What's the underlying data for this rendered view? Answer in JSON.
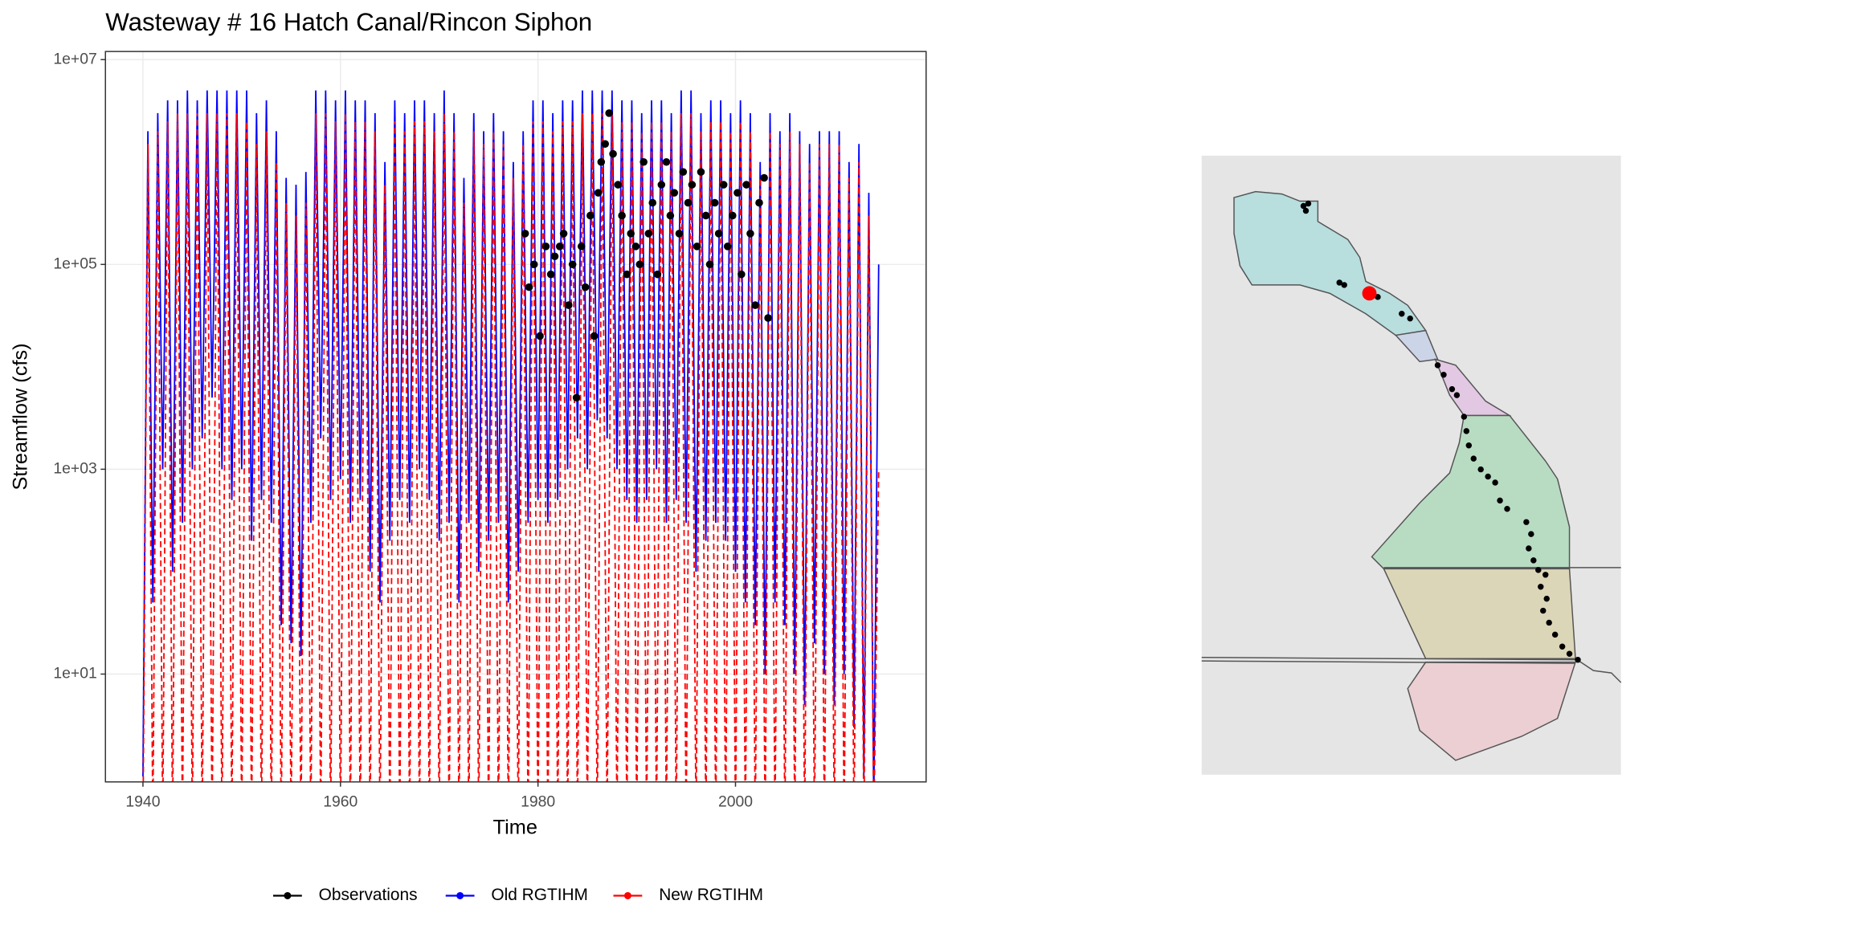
{
  "chart_data": {
    "type": "line",
    "title": "Wasteway # 16  Hatch Canal/Rincon Siphon",
    "x_label": "Time",
    "y_label": "Streamflow (cfs)",
    "log_y": true,
    "grid": true,
    "legend": "bottom",
    "xlim": [
      1936.2,
      2019.3
    ],
    "xticks": [
      1940,
      1960,
      1980,
      2000
    ],
    "ylim": [
      0.885,
      12000000.0
    ],
    "yticks": [
      {
        "value": 10,
        "label": "1e+01"
      },
      {
        "value": 1000,
        "label": "1e+03"
      },
      {
        "value": 100000,
        "label": "1e+05"
      },
      {
        "value": 10000000,
        "label": "1e+07"
      }
    ],
    "x": [
      1940,
      1940.5,
      1941,
      1941.5,
      1942,
      1942.5,
      1943,
      1943.5,
      1944,
      1944.5,
      1945,
      1945.5,
      1946,
      1946.5,
      1947,
      1947.5,
      1948,
      1948.5,
      1949,
      1949.5,
      1950,
      1950.5,
      1951,
      1951.5,
      1952,
      1952.5,
      1953,
      1953.5,
      1954,
      1954.5,
      1955,
      1955.5,
      1956,
      1956.5,
      1957,
      1957.5,
      1958,
      1958.5,
      1959,
      1959.5,
      1960,
      1960.5,
      1961,
      1961.5,
      1962,
      1962.5,
      1963,
      1963.5,
      1964,
      1964.5,
      1965,
      1965.5,
      1966,
      1966.5,
      1967,
      1967.5,
      1968,
      1968.5,
      1969,
      1969.5,
      1970,
      1970.5,
      1971,
      1971.5,
      1972,
      1972.5,
      1973,
      1973.5,
      1974,
      1974.5,
      1975,
      1975.5,
      1976,
      1976.5,
      1977,
      1977.5,
      1978,
      1978.5,
      1979,
      1979.5,
      1980,
      1980.5,
      1981,
      1981.5,
      1982,
      1982.5,
      1983,
      1983.5,
      1984,
      1984.5,
      1985,
      1985.5,
      1986,
      1986.5,
      1987,
      1987.5,
      1988,
      1988.5,
      1989,
      1989.5,
      1990,
      1990.5,
      1991,
      1991.5,
      1992,
      1992.5,
      1993,
      1993.5,
      1994,
      1994.5,
      1995,
      1995.5,
      1996,
      1996.5,
      1997,
      1997.5,
      1998,
      1998.5,
      1999,
      1999.5,
      2000,
      2000.5,
      2001,
      2001.5,
      2002,
      2002.5,
      2003,
      2003.5,
      2004,
      2004.5,
      2005,
      2005.5,
      2006,
      2006.5,
      2007,
      2007.5,
      2008,
      2008.5,
      2009,
      2009.5,
      2010,
      2010.5,
      2011,
      2011.5,
      2012,
      2012.5,
      2013,
      2013.5,
      2014,
      2014.5
    ],
    "series": [
      {
        "name": "Observations",
        "color": "#000000",
        "mode": "points",
        "x": [
          1978.7,
          1979.1,
          1979.6,
          1980.2,
          1980.8,
          1981.3,
          1981.7,
          1982.2,
          1982.6,
          1983.1,
          1983.5,
          1983.9,
          1984.4,
          1984.8,
          1985.3,
          1985.7,
          1986.1,
          1986.4,
          1986.8,
          1987.2,
          1987.6,
          1988.1,
          1988.5,
          1989.0,
          1989.4,
          1989.9,
          1990.3,
          1990.7,
          1991.2,
          1991.6,
          1992.1,
          1992.5,
          1993.0,
          1993.4,
          1993.8,
          1994.3,
          1994.7,
          1995.2,
          1995.6,
          1996.1,
          1996.5,
          1997.0,
          1997.4,
          1997.9,
          1998.3,
          1998.8,
          1999.2,
          1999.7,
          2000.2,
          2000.6,
          2001.1,
          2001.5,
          2002.0,
          2002.4,
          2002.9,
          2003.3
        ],
        "values": [
          200000.0,
          60000.0,
          100000.0,
          20000.0,
          150000.0,
          80000.0,
          120000.0,
          150000.0,
          200000.0,
          40000.0,
          100000.0,
          5000,
          150000.0,
          60000.0,
          300000.0,
          20000.0,
          500000.0,
          1000000.0,
          1500000.0,
          3000000.0,
          1200000.0,
          600000.0,
          300000.0,
          80000.0,
          200000.0,
          150000.0,
          100000.0,
          1000000.0,
          200000.0,
          400000.0,
          80000.0,
          600000.0,
          1000000.0,
          300000.0,
          500000.0,
          200000.0,
          800000.0,
          400000.0,
          600000.0,
          150000.0,
          800000.0,
          300000.0,
          100000.0,
          400000.0,
          200000.0,
          600000.0,
          150000.0,
          300000.0,
          500000.0,
          80000.0,
          600000.0,
          200000.0,
          40000.0,
          400000.0,
          700000.0,
          30000.0
        ]
      },
      {
        "name": "Old RGTIHM",
        "color": "#0000ff",
        "mode": "lines",
        "dash": "solid",
        "values": [
          1,
          2000000.0,
          50,
          3000000.0,
          1000,
          4000000.0,
          100,
          4000000.0,
          300,
          5000000.0,
          1000,
          4000000.0,
          2000,
          5000000.0,
          5000,
          5000000.0,
          1000,
          5000000.0,
          500,
          5000000.0,
          1000,
          5000000.0,
          200,
          3000000.0,
          500,
          4000000.0,
          300,
          2000000.0,
          30,
          700000.0,
          20,
          600000.0,
          15,
          800000.0,
          300,
          5000000.0,
          2000,
          5000000.0,
          500,
          4000000.0,
          800,
          5000000.0,
          300,
          4000000.0,
          500,
          4000000.0,
          100,
          3000000.0,
          50,
          1000000.0,
          200,
          4000000.0,
          500,
          3000000.0,
          300,
          4000000.0,
          1000,
          4000000.0,
          500,
          3000000.0,
          200,
          5000000.0,
          300,
          3000000.0,
          50,
          700000.0,
          300,
          3000000.0,
          100,
          2000000.0,
          200,
          3000000.0,
          300,
          2000000.0,
          50,
          1000000.0,
          100,
          2000000.0,
          300,
          4000000.0,
          500,
          4000000.0,
          300,
          3000000.0,
          500,
          4000000.0,
          1000,
          4000000.0,
          2000,
          5000000.0,
          1000,
          5000000.0,
          3000,
          5000000.0,
          2000,
          5000000.0,
          1000,
          4000000.0,
          500,
          4000000.0,
          300,
          3000000.0,
          500,
          4000000.0,
          1000,
          4000000.0,
          300,
          3000000.0,
          500,
          5000000.0,
          300,
          5000000.0,
          100,
          3000000.0,
          200,
          4000000.0,
          300,
          4000000.0,
          200,
          3000000.0,
          100,
          4000000.0,
          50,
          3000000.0,
          30,
          1000000.0,
          10,
          3000000.0,
          50,
          2000000.0,
          30,
          3000000.0,
          10,
          2000000.0,
          5,
          1500000.0,
          20,
          2000000.0,
          10,
          2000000.0,
          5,
          2000000.0,
          10,
          1000000.0,
          3,
          1500000.0,
          1,
          500000.0,
          0.5,
          100000.0
        ]
      },
      {
        "name": "New RGTIHM",
        "color": "#ff0000",
        "mode": "lines",
        "dash": "dashed",
        "values": [
          0.3,
          1500000.0,
          0.3,
          2000000.0,
          0.3,
          2500000.0,
          0.3,
          3000000.0,
          0.3,
          3000000.0,
          0.3,
          3000000.0,
          0.3,
          3000000.0,
          0.3,
          3000000.0,
          0.3,
          3000000.0,
          0.3,
          3000000.0,
          0.3,
          2500000.0,
          0.3,
          1500000.0,
          0.3,
          2000000.0,
          0.3,
          1000000.0,
          0.3,
          400000.0,
          0.3,
          300000.0,
          0.3,
          400000.0,
          0.3,
          3000000.0,
          0.3,
          3000000.0,
          0.3,
          2500000.0,
          0.3,
          3000000.0,
          0.3,
          2500000.0,
          0.3,
          2500000.0,
          0.3,
          2000000.0,
          0.3,
          600000.0,
          0.3,
          2500000.0,
          0.3,
          2000000.0,
          0.3,
          2500000.0,
          0.3,
          2500000.0,
          0.3,
          2000000.0,
          0.3,
          3000000.0,
          0.3,
          2000000.0,
          0.3,
          400000.0,
          0.3,
          2000000.0,
          0.3,
          1500000.0,
          0.3,
          2000000.0,
          0.3,
          1500000.0,
          0.3,
          700000.0,
          0.3,
          1500000.0,
          0.3,
          2500000.0,
          0.3,
          2500000.0,
          0.3,
          2000000.0,
          0.3,
          2500000.0,
          0.3,
          2500000.0,
          0.3,
          3000000.0,
          0.3,
          3000000.0,
          0.3,
          3000000.0,
          0.3,
          3000000.0,
          0.3,
          2500000.0,
          0.3,
          2500000.0,
          0.3,
          2000000.0,
          0.3,
          2500000.0,
          0.3,
          2500000.0,
          0.3,
          2000000.0,
          0.3,
          3000000.0,
          0.3,
          3000000.0,
          0.3,
          2000000.0,
          0.3,
          2500000.0,
          0.3,
          2500000.0,
          0.3,
          2000000.0,
          0.3,
          2500000.0,
          0.3,
          2000000.0,
          0.3,
          700000.0,
          0.3,
          2000000.0,
          0.3,
          1500000.0,
          0.3,
          2000000.0,
          0.3,
          1500000.0,
          0.3,
          1000000.0,
          0.3,
          1500000.0,
          0.3,
          1500000.0,
          0.3,
          1500000.0,
          0.3,
          700000.0,
          0.3,
          1000000.0,
          0.3,
          300000.0,
          0.3,
          1000
        ]
      }
    ]
  }
}
